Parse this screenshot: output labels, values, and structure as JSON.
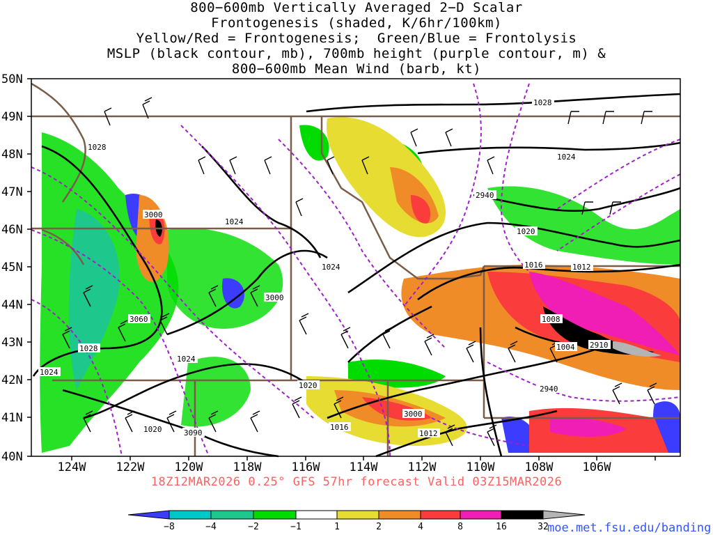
{
  "title_lines": [
    "800−600mb Vertically Averaged 2−D Scalar",
    "Frontogenesis (shaded, K/6hr/100km)",
    "Yellow/Red = Frontogenesis;  Green/Blue = Frontolysis",
    "MSLP (black contour, mb), 700mb height (purple contour, m) &",
    "800−600mb Mean Wind (barb, kt)"
  ],
  "footer": "18Z12MAR2026 0.25° GFS 57hr forecast Valid 03Z15MAR2026",
  "credit": "moe.met.fsu.edu/banding",
  "lat_labels": [
    "50N",
    "49N",
    "48N",
    "47N",
    "46N",
    "45N",
    "44N",
    "43N",
    "42N",
    "41N",
    "40N"
  ],
  "lon_labels": [
    "124W",
    "122W",
    "120W",
    "118W",
    "116W",
    "114W",
    "112W",
    "110W",
    "108W",
    "106W"
  ],
  "mslp_labels": [
    "1028",
    "1028",
    "1024",
    "1024",
    "1024",
    "1028",
    "1024",
    "1024",
    "1020",
    "1020",
    "1020",
    "1016",
    "1016",
    "1012",
    "1012",
    "1008",
    "1004"
  ],
  "height_labels": [
    "3000",
    "3060",
    "3000",
    "2940",
    "3000",
    "3090",
    "2940",
    "2910"
  ],
  "colorbar": {
    "colors": [
      "#3c3cff",
      "#00c8c8",
      "#1ec88c",
      "#00dc00",
      "#ffffff",
      "#e6dc32",
      "#f08c28",
      "#fa3c3c",
      "#f01eb4",
      "#000000",
      "#b4b4b4"
    ],
    "ticks": [
      "−8",
      "−4",
      "−2",
      "−1",
      "1",
      "2",
      "4",
      "8",
      "16",
      "32"
    ]
  }
}
